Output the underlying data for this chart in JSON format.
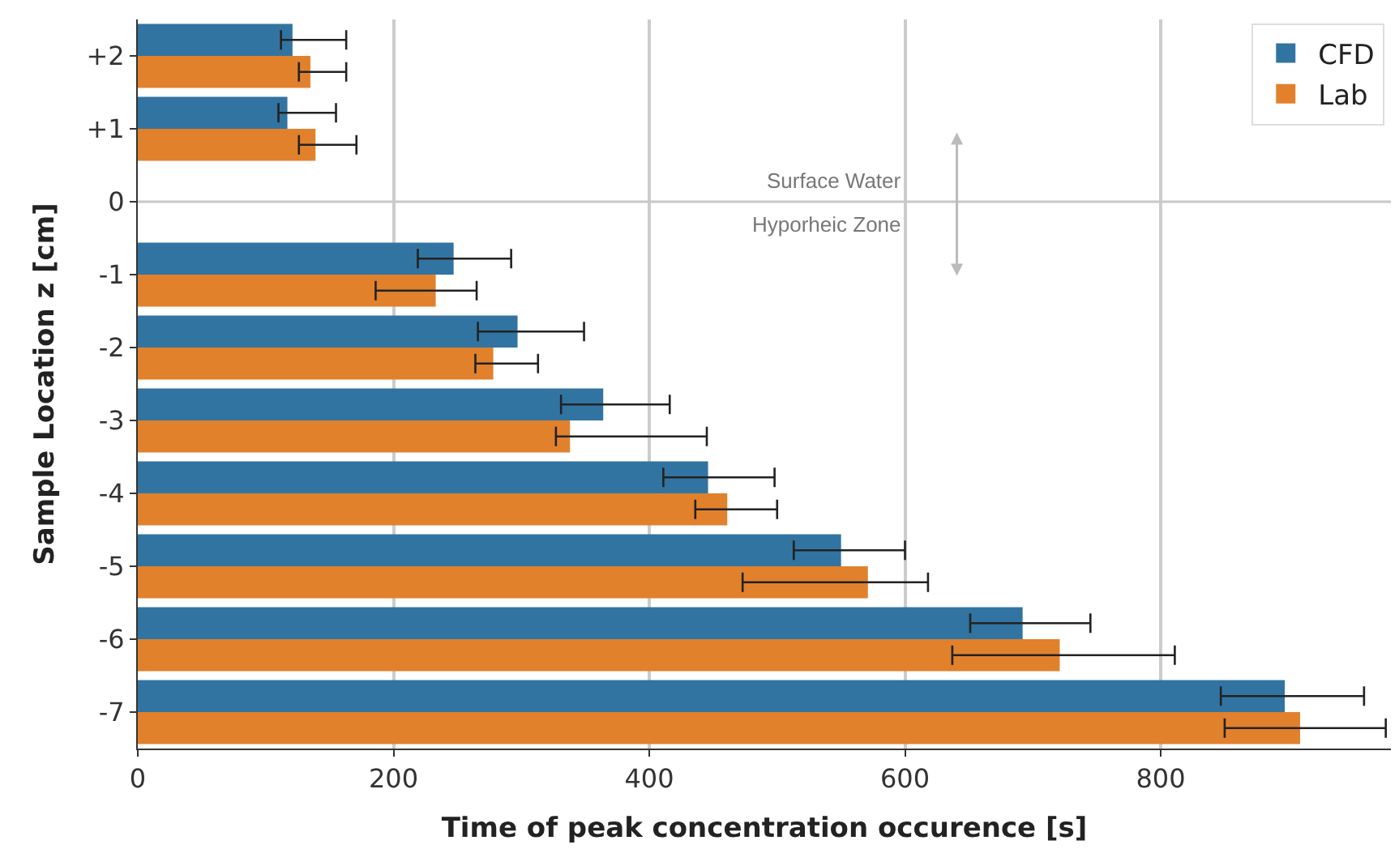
{
  "chart_data": {
    "type": "bar",
    "orientation": "horizontal",
    "xlabel": "Time of peak concentration occurence [s]",
    "ylabel": "Sample Location z [cm]",
    "categories": [
      "+2",
      "+1",
      "0",
      "-1",
      "-2",
      "-3",
      "-4",
      "-5",
      "-6",
      "-7"
    ],
    "series": [
      {
        "name": "CFD",
        "color": "#3274a1",
        "values": [
          121,
          117,
          null,
          247,
          297,
          364,
          446,
          550,
          692,
          897
        ],
        "errors": [
          [
            112,
            163
          ],
          [
            110,
            155
          ],
          null,
          [
            219,
            292
          ],
          [
            266,
            349
          ],
          [
            331,
            416
          ],
          [
            411,
            498
          ],
          [
            513,
            600
          ],
          [
            651,
            745
          ],
          [
            847,
            959
          ]
        ]
      },
      {
        "name": "Lab",
        "color": "#e1812c",
        "values": [
          135,
          139,
          null,
          233,
          278,
          338,
          461,
          571,
          721,
          909
        ],
        "errors": [
          [
            126,
            163
          ],
          [
            126,
            171
          ],
          null,
          [
            186,
            265
          ],
          [
            264,
            313
          ],
          [
            327,
            445
          ],
          [
            436,
            500
          ],
          [
            473,
            618
          ],
          [
            637,
            811
          ],
          [
            850,
            976
          ]
        ]
      }
    ],
    "xlim": [
      0,
      980
    ],
    "xticks": [
      0,
      200,
      400,
      600,
      800
    ],
    "ref_lines": [
      {
        "axis": "y",
        "value": "0",
        "color": "#c8c8c8"
      }
    ],
    "annotations": [
      {
        "text": "Surface Water",
        "x": 600,
        "y": "0"
      },
      {
        "text": "Hyporheic Zone",
        "x": 600,
        "y": "0"
      }
    ],
    "grid": "x",
    "legend": "top right"
  }
}
